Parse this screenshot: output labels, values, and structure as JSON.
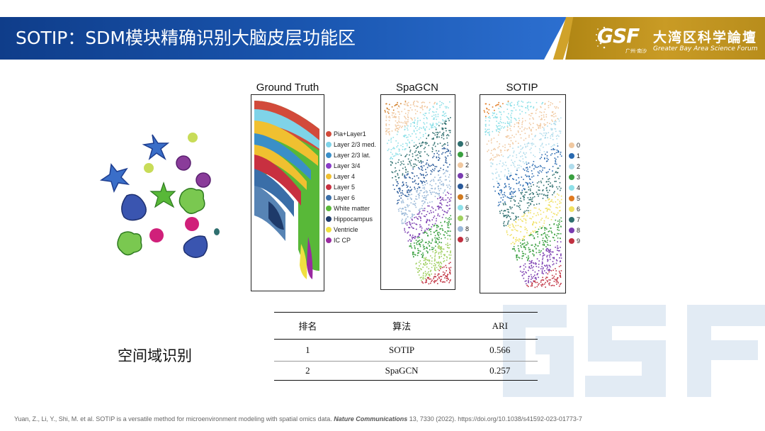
{
  "header": {
    "title": "SOTIP：SDM模块精确识别大脑皮层功能区",
    "logo_mark": "GSF",
    "logo_sub": "广州·南沙",
    "logo_cn": "大湾区科学論壇",
    "logo_en": "Greater Bay Area Science Forum",
    "colors": {
      "header_blue": "#1a56b0",
      "gold": "#c99b25"
    }
  },
  "watermark": {
    "text": "GSF"
  },
  "panels": {
    "ground_truth": {
      "title": "Ground Truth",
      "legend": [
        {
          "label": "Pia+Layer1",
          "color": "#d24a3a"
        },
        {
          "label": "Layer 2/3 med.",
          "color": "#7fd3e8"
        },
        {
          "label": "Layer 2/3 lat.",
          "color": "#3a8fc8"
        },
        {
          "label": "Layer 3/4",
          "color": "#8a3cc8"
        },
        {
          "label": "Layer 4",
          "color": "#f0c030"
        },
        {
          "label": "Layer 5",
          "color": "#c83040"
        },
        {
          "label": "Layer 6",
          "color": "#3a6ea8"
        },
        {
          "label": "White matter",
          "color": "#58b838"
        },
        {
          "label": "Hippocampus",
          "color": "#1e3a6a"
        },
        {
          "label": "Ventricle",
          "color": "#f0e040"
        },
        {
          "label": "IC CP",
          "color": "#9a2aa0"
        }
      ]
    },
    "spagcn": {
      "title": "SpaGCN",
      "legend": [
        {
          "label": "0",
          "color": "#2f6f6f"
        },
        {
          "label": "1",
          "color": "#3aa040"
        },
        {
          "label": "2",
          "color": "#f0c8a0"
        },
        {
          "label": "3",
          "color": "#7a3cb0"
        },
        {
          "label": "4",
          "color": "#2a5a9a"
        },
        {
          "label": "5",
          "color": "#d07a20"
        },
        {
          "label": "6",
          "color": "#8ee0e8"
        },
        {
          "label": "7",
          "color": "#a0d060"
        },
        {
          "label": "8",
          "color": "#9ab8d8"
        },
        {
          "label": "9",
          "color": "#c03040"
        }
      ]
    },
    "sotip": {
      "title": "SOTIP",
      "legend": [
        {
          "label": "0",
          "color": "#f0c8a0"
        },
        {
          "label": "1",
          "color": "#2a6ab0"
        },
        {
          "label": "2",
          "color": "#b0dcec"
        },
        {
          "label": "3",
          "color": "#3aa040"
        },
        {
          "label": "4",
          "color": "#8ee0e8"
        },
        {
          "label": "5",
          "color": "#e07a20"
        },
        {
          "label": "6",
          "color": "#f0e060"
        },
        {
          "label": "7",
          "color": "#2f6f6f"
        },
        {
          "label": "8",
          "color": "#7a3cb0"
        },
        {
          "label": "9",
          "color": "#c03040"
        }
      ]
    }
  },
  "section_label": "空间域识别",
  "table": {
    "headers": [
      "排名",
      "算法",
      "ARI"
    ],
    "rows": [
      [
        "1",
        "SOTIP",
        "0.566"
      ],
      [
        "2",
        "SpaGCN",
        "0.257"
      ]
    ]
  },
  "citation": {
    "prefix": "Yuan, Z., Li, Y., Shi, M. et al. SOTIP is a versatile method for microenvironment modeling with spatial omics data. ",
    "journal": "Nature Communications",
    "suffix": " 13, 7330 (2022). https://doi.org/10.1038/s41592-023-01773-7"
  }
}
